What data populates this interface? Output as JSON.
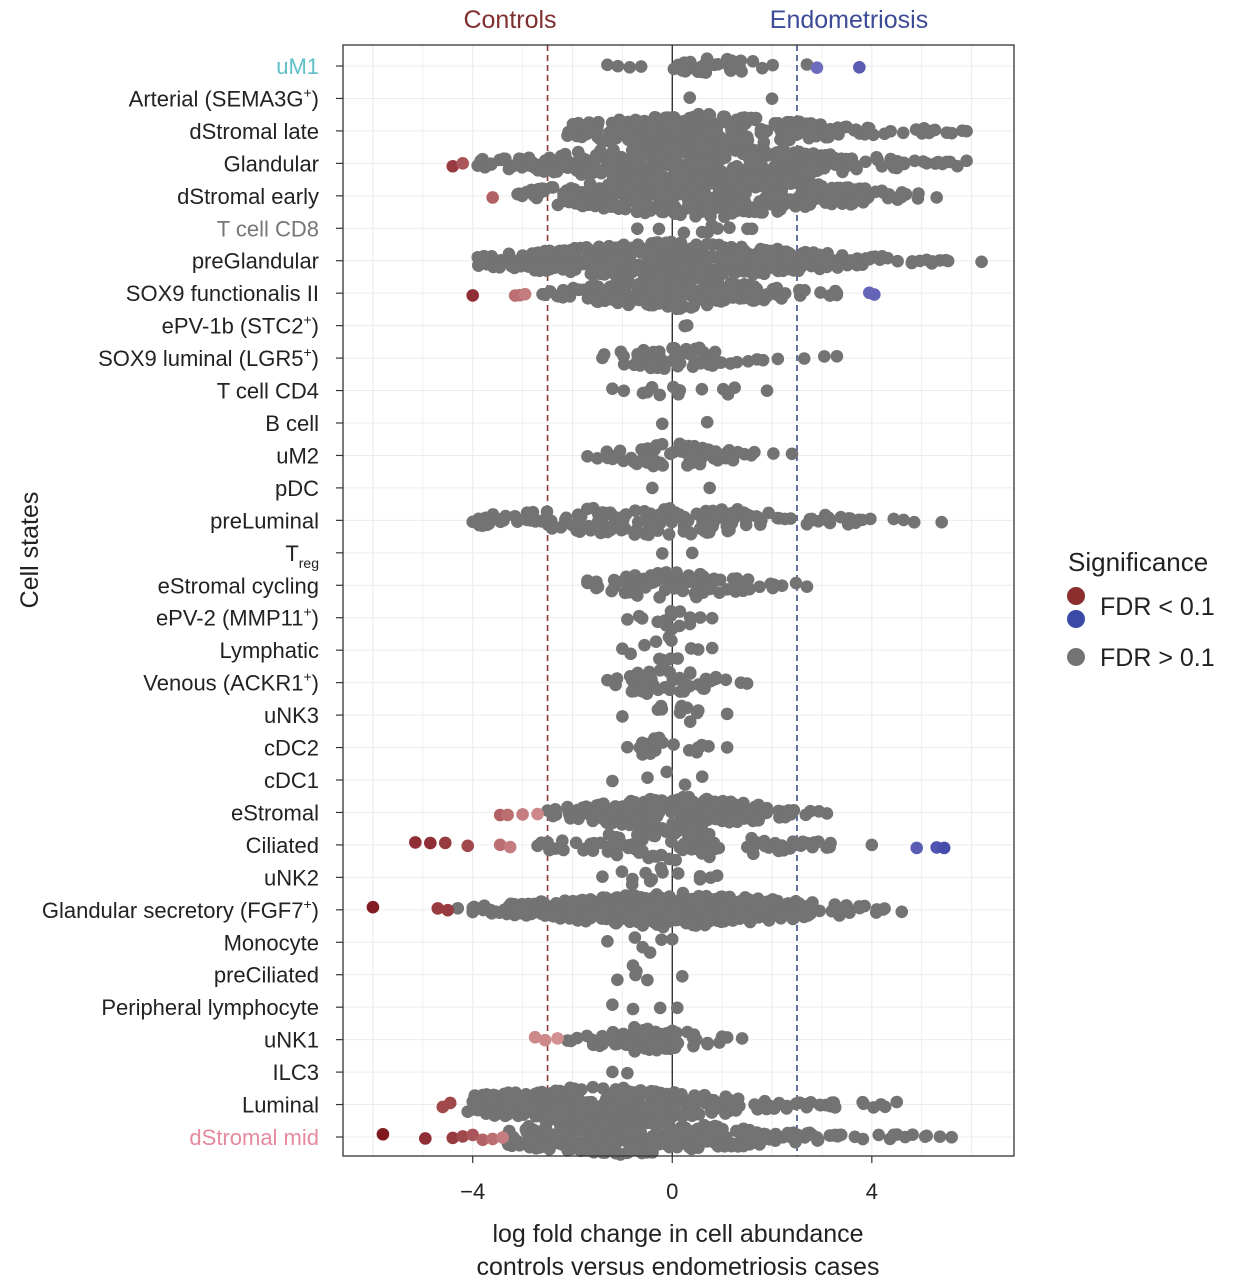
{
  "chart_data": {
    "type": "scatter",
    "title": "",
    "group_labels": {
      "left": "Controls",
      "right": "Endometriosis"
    },
    "xlabel": [
      "log fold change in cell abundance",
      "controls versus endometriosis cases"
    ],
    "ylabel": "Cell states",
    "xlim": [
      -6.6,
      6.85
    ],
    "xticks": [
      -4,
      0,
      4
    ],
    "xtick_labels": [
      "−4",
      "0",
      "4"
    ],
    "threshold_lines": [
      {
        "x": -2.5,
        "color": "#8b3a3a",
        "style": "dashed"
      },
      {
        "x": 2.5,
        "color": "#3b4f8a",
        "style": "dashed"
      }
    ],
    "zero_line": 0,
    "categories": [
      {
        "name": "uM1",
        "base": "uM1",
        "sup": "",
        "sub": "",
        "label_color": "#5fbfc9",
        "spread": [
          -1.3,
          2.7
        ],
        "density": 0.6,
        "width": 0.25,
        "center": 0.9,
        "sig": [
          {
            "x": 2.9,
            "fdr": 0.06
          },
          {
            "x": 3.75,
            "fdr": 0.04
          }
        ]
      },
      {
        "name": "Arterial (SEMA3G+)",
        "base": "Arterial (SEMA3G",
        "sup": "+",
        "suffix": ")",
        "label_color": "#222222",
        "spread": [
          0.35,
          2.0
        ],
        "density": 0.05,
        "width": 0.1,
        "center": 1.0,
        "sig": []
      },
      {
        "name": "dStromal late",
        "base": "dStromal late",
        "label_color": "#222222",
        "spread": [
          -2.1,
          5.9
        ],
        "density": 2.6,
        "width": 0.55,
        "center": 0.6,
        "sig": []
      },
      {
        "name": "Glandular",
        "base": "Glandular",
        "label_color": "#222222",
        "spread": [
          -3.9,
          5.9
        ],
        "density": 2.6,
        "width": 0.6,
        "center": 0.4,
        "sig": [
          {
            "x": -4.4,
            "fdr": 0.03
          },
          {
            "x": -4.2,
            "fdr": 0.05
          }
        ]
      },
      {
        "name": "dStromal early",
        "base": "dStromal early",
        "label_color": "#222222",
        "spread": [
          -3.1,
          5.3
        ],
        "density": 3.0,
        "width": 0.75,
        "center": 0.6,
        "sig": [
          {
            "x": -3.6,
            "fdr": 0.06
          }
        ]
      },
      {
        "name": "T cell CD8",
        "base": "T cell CD8",
        "label_color": "#777777",
        "spread": [
          -0.7,
          1.6
        ],
        "density": 0.3,
        "width": 0.22,
        "center": 0.6,
        "sig": []
      },
      {
        "name": "preGlandular",
        "base": "preGlandular",
        "label_color": "#222222",
        "spread": [
          -3.9,
          6.2
        ],
        "density": 3.2,
        "width": 0.6,
        "center": 0.0,
        "sig": []
      },
      {
        "name": "SOX9 functionalis II",
        "base": "SOX9 functionalis II",
        "label_color": "#222222",
        "spread": [
          -2.6,
          3.3
        ],
        "density": 2.6,
        "width": 0.5,
        "center": 0.0,
        "sig": [
          {
            "x": -4.0,
            "fdr": 0.02
          },
          {
            "x": -3.15,
            "fdr": 0.07
          },
          {
            "x": -3.05,
            "fdr": 0.07
          },
          {
            "x": -2.95,
            "fdr": 0.08
          },
          {
            "x": 3.95,
            "fdr": 0.05
          },
          {
            "x": 4.05,
            "fdr": 0.05
          }
        ]
      },
      {
        "name": "ePV-1b (STC2+)",
        "base": "ePV-1b (STC2",
        "sup": "+",
        "suffix": ")",
        "label_color": "#222222",
        "spread": [
          0.25,
          0.3
        ],
        "density": 0.01,
        "width": 0.05,
        "center": 0.25,
        "sig": []
      },
      {
        "name": "SOX9 luminal (LGR5+)",
        "base": "SOX9 luminal (LGR5",
        "sup": "+",
        "suffix": ")",
        "label_color": "#222222",
        "spread": [
          -1.4,
          3.3
        ],
        "density": 0.8,
        "width": 0.4,
        "center": 0.0,
        "sig": []
      },
      {
        "name": "T cell CD4",
        "base": "T cell CD4",
        "label_color": "#222222",
        "spread": [
          -1.2,
          1.9
        ],
        "density": 0.3,
        "width": 0.35,
        "center": 0.0,
        "sig": []
      },
      {
        "name": "B cell",
        "base": "B cell",
        "label_color": "#222222",
        "spread": [
          -0.2,
          0.7
        ],
        "density": 0.08,
        "width": 0.2,
        "center": 0.2,
        "sig": []
      },
      {
        "name": "uM2",
        "base": "uM2",
        "label_color": "#222222",
        "spread": [
          -1.7,
          2.4
        ],
        "density": 1.1,
        "width": 0.4,
        "center": 0.0,
        "sig": []
      },
      {
        "name": "pDC",
        "base": "pDC",
        "label_color": "#222222",
        "spread": [
          -0.4,
          0.75
        ],
        "density": 0.02,
        "width": 0.1,
        "center": 0.2,
        "sig": []
      },
      {
        "name": "preLuminal",
        "base": "preLuminal",
        "label_color": "#222222",
        "spread": [
          -4.0,
          5.4
        ],
        "density": 1.3,
        "width": 0.5,
        "center": -0.3,
        "sig": []
      },
      {
        "name": "Treg",
        "base": "T",
        "sub": "reg",
        "label_color": "#222222",
        "spread": [
          -0.2,
          0.4
        ],
        "density": 0.05,
        "width": 0.15,
        "center": 0.0,
        "sig": []
      },
      {
        "name": "eStromal cycling",
        "base": "eStromal cycling",
        "label_color": "#222222",
        "spread": [
          -1.7,
          2.7
        ],
        "density": 1.3,
        "width": 0.5,
        "center": 0.0,
        "sig": []
      },
      {
        "name": "ePV-2 (MMP11+)",
        "base": "ePV-2 (MMP11",
        "sup": "+",
        "suffix": ")",
        "label_color": "#222222",
        "spread": [
          -0.9,
          0.8
        ],
        "density": 0.6,
        "width": 0.45,
        "center": -0.1,
        "sig": []
      },
      {
        "name": "Lymphatic",
        "base": "Lymphatic",
        "label_color": "#222222",
        "spread": [
          -1.0,
          0.8
        ],
        "density": 0.5,
        "width": 0.45,
        "center": -0.1,
        "sig": []
      },
      {
        "name": "Venous (ACKR1+)",
        "base": "Venous (ACKR1",
        "sup": "+",
        "suffix": ")",
        "label_color": "#222222",
        "spread": [
          -1.3,
          1.5
        ],
        "density": 1.1,
        "width": 0.5,
        "center": -0.1,
        "sig": []
      },
      {
        "name": "uNK3",
        "base": "uNK3",
        "label_color": "#222222",
        "spread": [
          -1.0,
          1.1
        ],
        "density": 0.4,
        "width": 0.35,
        "center": 0.0,
        "sig": []
      },
      {
        "name": "cDC2",
        "base": "cDC2",
        "label_color": "#222222",
        "spread": [
          -0.9,
          1.1
        ],
        "density": 0.7,
        "width": 0.4,
        "center": -0.1,
        "sig": []
      },
      {
        "name": "cDC1",
        "base": "cDC1",
        "label_color": "#222222",
        "spread": [
          -1.2,
          0.6
        ],
        "density": 0.2,
        "width": 0.3,
        "center": 0.0,
        "sig": []
      },
      {
        "name": "eStromal",
        "base": "eStromal",
        "label_color": "#222222",
        "spread": [
          -2.5,
          3.1
        ],
        "density": 3.0,
        "width": 0.55,
        "center": 0.0,
        "sig": [
          {
            "x": -3.45,
            "fdr": 0.06
          },
          {
            "x": -3.3,
            "fdr": 0.07
          },
          {
            "x": -3.0,
            "fdr": 0.08
          },
          {
            "x": -2.7,
            "fdr": 0.09
          }
        ]
      },
      {
        "name": "Ciliated",
        "base": "Ciliated",
        "label_color": "#222222",
        "spread": [
          -2.7,
          4.0
        ],
        "density": 1.0,
        "width": 0.5,
        "center": 0.0,
        "sig": [
          {
            "x": -5.15,
            "fdr": 0.02
          },
          {
            "x": -4.85,
            "fdr": 0.02
          },
          {
            "x": -4.55,
            "fdr": 0.03
          },
          {
            "x": -4.1,
            "fdr": 0.04
          },
          {
            "x": -3.45,
            "fdr": 0.07
          },
          {
            "x": -3.25,
            "fdr": 0.08
          },
          {
            "x": 4.9,
            "fdr": 0.04
          },
          {
            "x": 5.3,
            "fdr": 0.03
          },
          {
            "x": 5.45,
            "fdr": 0.02
          }
        ]
      },
      {
        "name": "uNK2",
        "base": "uNK2",
        "label_color": "#222222",
        "spread": [
          -1.4,
          0.9
        ],
        "density": 0.4,
        "width": 0.4,
        "center": -0.3,
        "sig": []
      },
      {
        "name": "Glandular secretory (FGF7+)",
        "base": "Glandular secretory (FGF7",
        "sup": "+",
        "suffix": ")",
        "label_color": "#222222",
        "spread": [
          -4.3,
          4.6
        ],
        "density": 3.0,
        "width": 0.55,
        "center": 0.0,
        "sig": [
          {
            "x": -6.0,
            "fdr": 0.005
          },
          {
            "x": -4.7,
            "fdr": 0.03
          },
          {
            "x": -4.5,
            "fdr": 0.03
          }
        ]
      },
      {
        "name": "Monocyte",
        "base": "Monocyte",
        "label_color": "#222222",
        "spread": [
          -1.3,
          0.0
        ],
        "density": 0.3,
        "width": 0.35,
        "center": -0.5,
        "sig": []
      },
      {
        "name": "preCiliated",
        "base": "preCiliated",
        "label_color": "#222222",
        "spread": [
          -1.1,
          0.2
        ],
        "density": 0.3,
        "width": 0.4,
        "center": -0.7,
        "sig": []
      },
      {
        "name": "Peripheral lymphocyte",
        "base": "Peripheral lymphocyte",
        "label_color": "#222222",
        "spread": [
          -1.2,
          0.1
        ],
        "density": 0.2,
        "width": 0.35,
        "center": -0.7,
        "sig": []
      },
      {
        "name": "uNK1",
        "base": "uNK1",
        "label_color": "#222222",
        "spread": [
          -2.1,
          1.4
        ],
        "density": 1.5,
        "width": 0.45,
        "center": -0.5,
        "sig": [
          {
            "x": -2.75,
            "fdr": 0.09
          },
          {
            "x": -2.55,
            "fdr": 0.09
          },
          {
            "x": -2.3,
            "fdr": 0.095
          }
        ]
      },
      {
        "name": "ILC3",
        "base": "ILC3",
        "label_color": "#222222",
        "spread": [
          -1.2,
          -0.9
        ],
        "density": 0.03,
        "width": 0.1,
        "center": -1.0,
        "sig": []
      },
      {
        "name": "Luminal",
        "base": "Luminal",
        "label_color": "#222222",
        "spread": [
          -4.1,
          4.5
        ],
        "density": 2.4,
        "width": 0.6,
        "center": -1.5,
        "sig": [
          {
            "x": -4.6,
            "fdr": 0.04
          },
          {
            "x": -4.45,
            "fdr": 0.04
          }
        ]
      },
      {
        "name": "dStromal mid",
        "base": "dStromal mid",
        "label_color": "#e6899f",
        "spread": [
          -3.3,
          5.6
        ],
        "density": 2.4,
        "width": 0.55,
        "center": -1.0,
        "sig": [
          {
            "x": -5.8,
            "fdr": 0.003
          },
          {
            "x": -4.95,
            "fdr": 0.02
          },
          {
            "x": -4.4,
            "fdr": 0.03
          },
          {
            "x": -4.2,
            "fdr": 0.04
          },
          {
            "x": -4.0,
            "fdr": 0.05
          },
          {
            "x": -3.8,
            "fdr": 0.06
          },
          {
            "x": -3.6,
            "fdr": 0.07
          },
          {
            "x": -3.4,
            "fdr": 0.08
          }
        ]
      }
    ],
    "legend": {
      "title": "Significance",
      "entries": [
        {
          "label": "FDR < 0.1",
          "colors": [
            "#8b2e2e",
            "#3b4aa6"
          ]
        },
        {
          "label": "FDR > 0.1",
          "colors": [
            "#737373"
          ]
        }
      ],
      "position": "right"
    },
    "colors": {
      "nonsig": "#737373",
      "controls_line": "#8b3a3a",
      "endo_line": "#3b4f8a",
      "controls_text": "#7f2f2f",
      "endo_text": "#3d4b96"
    }
  }
}
